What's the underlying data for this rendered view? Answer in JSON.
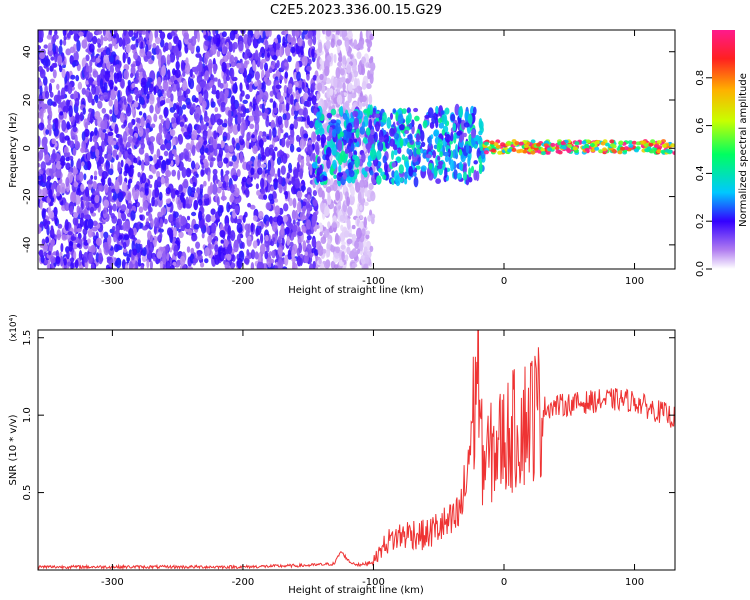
{
  "title": "C2E5.2023.336.00.15.G29",
  "chart_data": [
    {
      "type": "heatmap",
      "xlabel": "Height of straight line (km)",
      "ylabel": "Frequency (Hz)",
      "xlim": [
        -357,
        131
      ],
      "ylim": [
        -50,
        49
      ],
      "x_ticks": [
        -300,
        -200,
        -100,
        0,
        100
      ],
      "x_tick_labels": [
        "-300",
        "-200",
        "-100",
        "0",
        "100"
      ],
      "y_ticks": [
        -40,
        -20,
        0,
        20,
        40
      ],
      "y_tick_labels": [
        "-40",
        "-20",
        "0",
        "20",
        "40"
      ],
      "colorbar": {
        "label": "Normalized spectral amplitude",
        "range": [
          0,
          1
        ],
        "ticks": [
          0.0,
          0.2,
          0.4,
          0.6,
          0.8
        ],
        "tick_labels": [
          "0.0",
          "0.2",
          "0.4",
          "0.6",
          "0.8"
        ]
      },
      "regions": [
        {
          "x": [
            -357,
            -143
          ],
          "freq": [
            -50,
            49
          ],
          "amplitude": 0.15
        },
        {
          "x": [
            -143,
            -100
          ],
          "freq": [
            -50,
            49
          ],
          "amplitude": 0.05
        },
        {
          "x": [
            -145,
            -15
          ],
          "freq": [
            -14,
            16
          ],
          "amplitude": 0.3
        },
        {
          "x": [
            -15,
            131
          ],
          "freq": [
            -2,
            3
          ],
          "amplitude": 0.75
        }
      ]
    },
    {
      "type": "line",
      "xlabel": "Height of straight line (km)",
      "ylabel": "SNR (10 * v/v)",
      "y_multiplier": "(x10⁴)",
      "xlim": [
        -357,
        131
      ],
      "ylim": [
        0,
        1.55
      ],
      "x_ticks": [
        -300,
        -200,
        -100,
        0,
        100
      ],
      "x_tick_labels": [
        "-300",
        "-200",
        "-100",
        "0",
        "100"
      ],
      "y_ticks": [
        0.5,
        1.0,
        1.5
      ],
      "y_tick_labels": [
        "0.5",
        "1.0",
        "1.5"
      ],
      "series": [
        {
          "color": "#ee3333",
          "x": [
            -357,
            -300,
            -250,
            -200,
            -150,
            -130,
            -125,
            -118,
            -110,
            -100,
            -90,
            -80,
            -70,
            -60,
            -50,
            -40,
            -35,
            -30,
            -25,
            -22,
            -20,
            -18,
            -15,
            -10,
            -5,
            0,
            5,
            10,
            15,
            20,
            25,
            30,
            40,
            50,
            60,
            70,
            80,
            90,
            100,
            110,
            120,
            131
          ],
          "y": [
            0.02,
            0.02,
            0.02,
            0.02,
            0.03,
            0.04,
            0.12,
            0.05,
            0.03,
            0.06,
            0.18,
            0.22,
            0.24,
            0.22,
            0.28,
            0.3,
            0.35,
            0.5,
            0.9,
            1.1,
            1.55,
            0.8,
            0.7,
            0.75,
            0.8,
            0.85,
            0.88,
            0.92,
            0.95,
            1.0,
            1.03,
            1.05,
            1.06,
            1.07,
            1.08,
            1.09,
            1.1,
            1.1,
            1.09,
            1.05,
            1.02,
            0.98
          ]
        }
      ]
    }
  ]
}
